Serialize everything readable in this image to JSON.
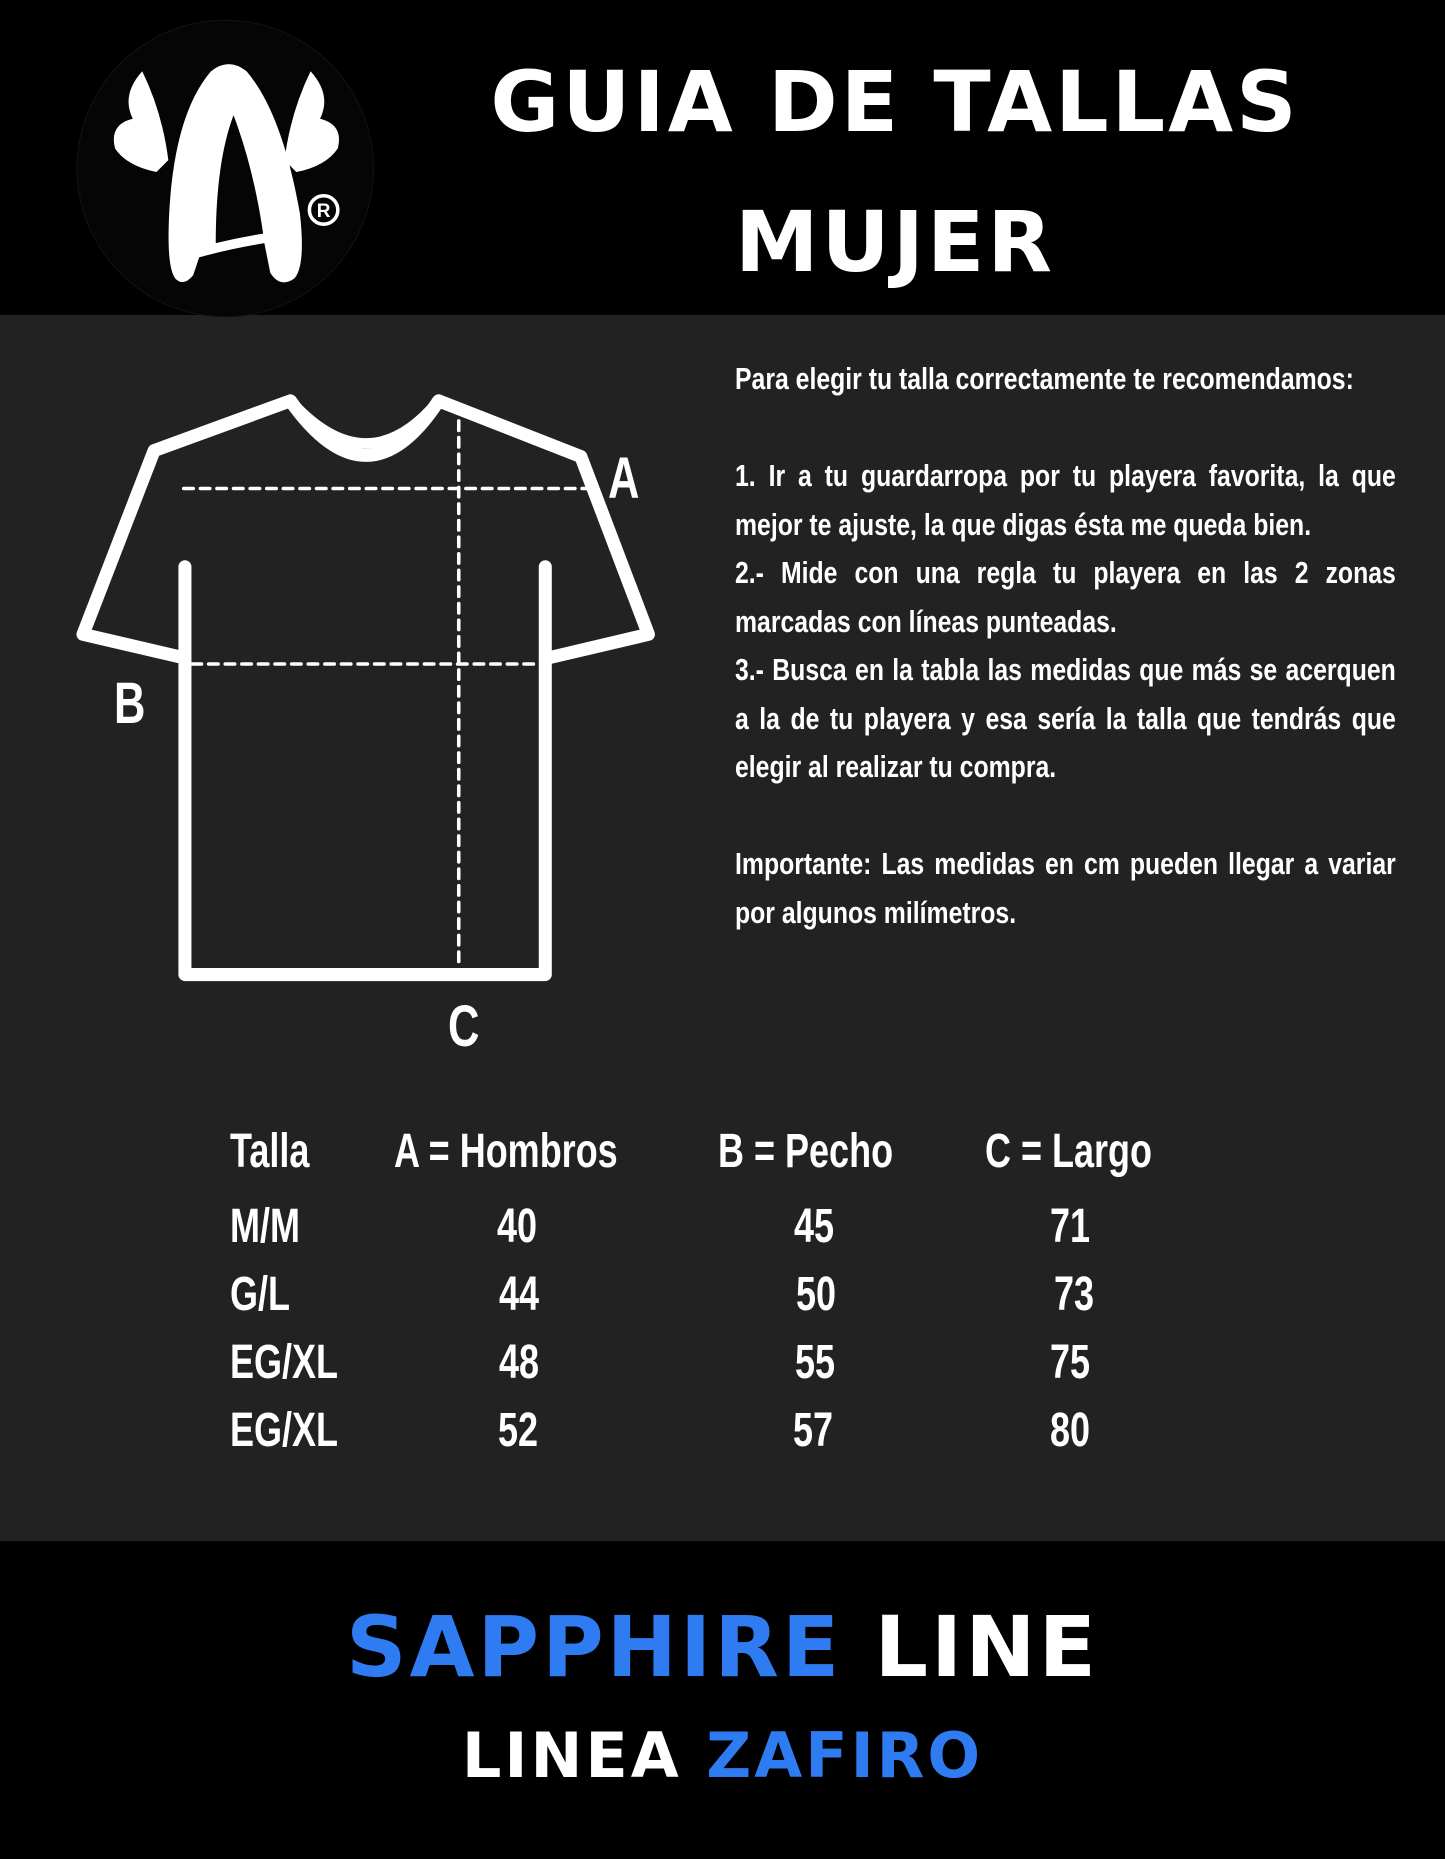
{
  "header": {
    "title_line1": "GUIA DE TALLAS",
    "title_line2": "MUJER",
    "logo_text": "A®"
  },
  "diagram": {
    "label_a": "A",
    "label_b": "B",
    "label_c": "C"
  },
  "instructions": {
    "intro": "Para elegir tu talla correctamente te recomendamos:",
    "step1": "1. Ir a tu guardarropa por tu playera favorita, la que mejor te ajuste, la que digas ésta me queda bien.",
    "step2": "2.- Mide con una regla tu playera en las 2 zonas marcadas con líneas punteadas.",
    "step3": "3.- Busca en la tabla las medidas que más se acerquen a la de tu playera y esa sería la talla que tendrás que elegir al realizar tu compra.",
    "note": "Importante: Las medidas en cm pueden llegar a variar por algunos milímetros."
  },
  "table": {
    "headers": [
      "Talla",
      "A = Hombros",
      "B = Pecho",
      "C = Largo"
    ],
    "rows": [
      [
        "M/M",
        "40",
        "45",
        "71"
      ],
      [
        "G/L",
        "44",
        "50",
        "73"
      ],
      [
        "EG/XL",
        "48",
        "55",
        "75"
      ],
      [
        "EG/XL",
        "52",
        "57",
        "80"
      ]
    ]
  },
  "footer": {
    "line1_blue": "SAPPHIRE",
    "line1_white": "LINE",
    "line2_white": "LINEA",
    "line2_blue": "ZAFIRO"
  },
  "colors": {
    "accent_blue": "#2f7cf2",
    "panel": "#222222",
    "background": "#000000"
  }
}
